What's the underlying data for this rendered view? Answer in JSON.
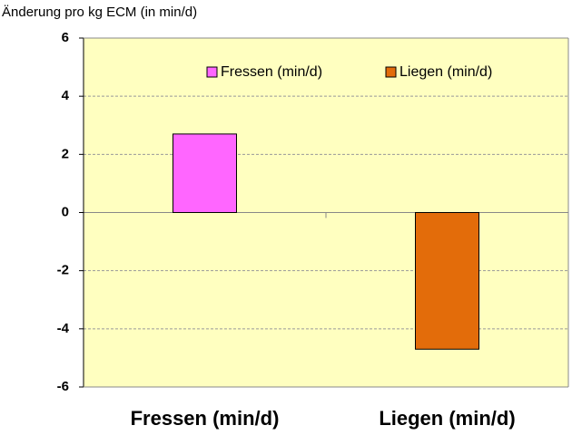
{
  "chart_data": {
    "type": "bar",
    "y_axis_label": "Änderung pro kg ECM (in min/d)",
    "categories": [
      "Fressen (min/d)",
      "Liegen (min/d)"
    ],
    "series": [
      {
        "name": "Fressen (min/d)",
        "color": "#ff66ff",
        "values": [
          2.7,
          null
        ]
      },
      {
        "name": "Liegen (min/d)",
        "color": "#e36c0a",
        "values": [
          null,
          -4.7
        ]
      }
    ],
    "ylim": [
      -6,
      6
    ],
    "yticks": [
      -6,
      -4,
      -2,
      0,
      2,
      4,
      6
    ],
    "grid": true,
    "legend": "top"
  }
}
